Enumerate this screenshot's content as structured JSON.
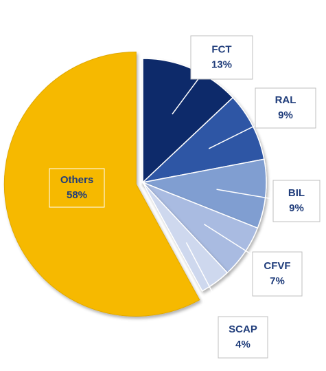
{
  "chart_data": {
    "type": "pie",
    "categories": [
      "FCT",
      "RAL",
      "BIL",
      "CFVF",
      "SCAP",
      "Others"
    ],
    "values": [
      13,
      9,
      9,
      7,
      4,
      58
    ],
    "value_labels": [
      "13%",
      "9%",
      "9%",
      "7%",
      "4%",
      "58%"
    ],
    "colors": [
      "#0e2a6b",
      "#2f56a5",
      "#809ed1",
      "#a9bbe1",
      "#ced8ee",
      "#f6b900"
    ]
  }
}
